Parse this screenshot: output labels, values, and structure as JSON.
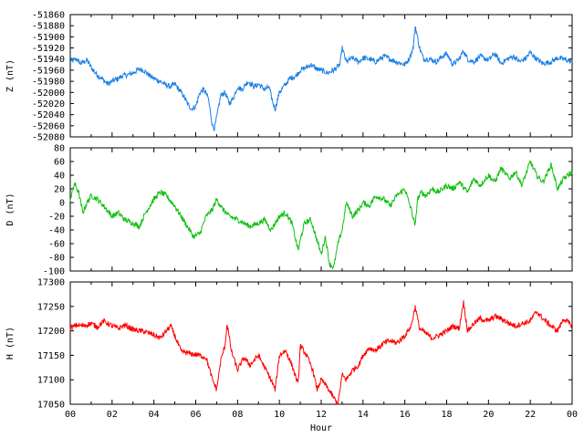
{
  "chart_data": [
    {
      "type": "line",
      "ylabel": "Z (nT)",
      "ylim": [
        -52080,
        -51860
      ],
      "yticks": [
        -51860,
        -51880,
        -51900,
        -51920,
        -51940,
        -51960,
        -51980,
        -52000,
        -52020,
        -52040,
        -52060,
        -52080
      ],
      "xlim": [
        0,
        24
      ],
      "grid": false,
      "series": [
        {
          "color": "#1a7fe6",
          "x": [
            0,
            0.3,
            0.5,
            0.8,
            1.0,
            1.2,
            1.5,
            1.8,
            2.0,
            2.3,
            2.5,
            2.8,
            3.0,
            3.3,
            3.5,
            3.8,
            4.0,
            4.3,
            4.5,
            4.8,
            5.0,
            5.2,
            5.4,
            5.6,
            5.8,
            6.0,
            6.2,
            6.4,
            6.6,
            6.8,
            6.9,
            7.0,
            7.2,
            7.4,
            7.6,
            7.8,
            8.0,
            8.2,
            8.5,
            8.8,
            9.0,
            9.3,
            9.5,
            9.7,
            9.8,
            10.0,
            10.3,
            10.5,
            10.8,
            11.0,
            11.3,
            11.5,
            11.8,
            12.0,
            12.3,
            12.6,
            12.9,
            13.0,
            13.2,
            13.5,
            13.8,
            14.0,
            14.3,
            14.6,
            15.0,
            15.3,
            15.6,
            16.0,
            16.2,
            16.4,
            16.5,
            16.7,
            16.9,
            17.2,
            17.5,
            17.8,
            18.0,
            18.3,
            18.6,
            18.8,
            19.0,
            19.3,
            19.6,
            20.0,
            20.3,
            20.6,
            20.9,
            21.2,
            21.5,
            21.8,
            22.0,
            22.3,
            22.6,
            23.0,
            23.3,
            23.6,
            24.0
          ],
          "values": [
            -51945,
            -51940,
            -51948,
            -51942,
            -51955,
            -51965,
            -51975,
            -51985,
            -51980,
            -51975,
            -51970,
            -51968,
            -51965,
            -51958,
            -51960,
            -51970,
            -51975,
            -51980,
            -51985,
            -51990,
            -51985,
            -51995,
            -52005,
            -52020,
            -52030,
            -52025,
            -52000,
            -51995,
            -52010,
            -52060,
            -52065,
            -52045,
            -52005,
            -52000,
            -52020,
            -52010,
            -51990,
            -51995,
            -51980,
            -51990,
            -51985,
            -51995,
            -51990,
            -52020,
            -52030,
            -52000,
            -51985,
            -51975,
            -51970,
            -51960,
            -51955,
            -51950,
            -51958,
            -51960,
            -51965,
            -51960,
            -51950,
            -51920,
            -51945,
            -51938,
            -51945,
            -51938,
            -51940,
            -51945,
            -51935,
            -51940,
            -51945,
            -51950,
            -51940,
            -51920,
            -51880,
            -51920,
            -51940,
            -51940,
            -51945,
            -51935,
            -51930,
            -51950,
            -51940,
            -51925,
            -51940,
            -51945,
            -51935,
            -51942,
            -51930,
            -51948,
            -51940,
            -51935,
            -51945,
            -51938,
            -51928,
            -51940,
            -51948,
            -51945,
            -51938,
            -51940,
            -51945
          ]
        }
      ]
    },
    {
      "type": "line",
      "ylabel": "D (nT)",
      "ylim": [
        -100,
        80
      ],
      "yticks": [
        80,
        60,
        40,
        20,
        0,
        -20,
        -40,
        -60,
        -80,
        -100
      ],
      "xlim": [
        0,
        24
      ],
      "grid": false,
      "series": [
        {
          "color": "#10c010",
          "x": [
            0,
            0.2,
            0.4,
            0.6,
            0.8,
            1.0,
            1.3,
            1.6,
            2.0,
            2.3,
            2.6,
            3.0,
            3.3,
            3.6,
            4.0,
            4.3,
            4.6,
            5.0,
            5.3,
            5.6,
            5.9,
            6.2,
            6.5,
            6.8,
            7.0,
            7.3,
            7.6,
            8.0,
            8.3,
            8.6,
            9.0,
            9.3,
            9.6,
            10.0,
            10.3,
            10.6,
            10.9,
            11.0,
            11.2,
            11.5,
            11.8,
            12.0,
            12.2,
            12.4,
            12.6,
            12.8,
            13.0,
            13.2,
            13.5,
            13.8,
            14.0,
            14.3,
            14.6,
            15.0,
            15.3,
            15.6,
            16.0,
            16.3,
            16.5,
            16.6,
            16.8,
            17.0,
            17.3,
            17.6,
            18.0,
            18.3,
            18.6,
            19.0,
            19.3,
            19.6,
            20.0,
            20.3,
            20.6,
            21.0,
            21.3,
            21.6,
            22.0,
            22.3,
            22.6,
            23.0,
            23.3,
            23.6,
            24.0
          ],
          "values": [
            5,
            28,
            15,
            -15,
            0,
            10,
            5,
            -5,
            -20,
            -15,
            -25,
            -30,
            -35,
            -15,
            5,
            15,
            10,
            -5,
            -20,
            -35,
            -50,
            -45,
            -20,
            -10,
            5,
            -10,
            -20,
            -25,
            -30,
            -35,
            -30,
            -25,
            -40,
            -20,
            -15,
            -30,
            -70,
            -55,
            -30,
            -25,
            -55,
            -75,
            -50,
            -90,
            -95,
            -60,
            -40,
            0,
            -20,
            -10,
            0,
            -5,
            10,
            5,
            -5,
            10,
            20,
            -10,
            -35,
            5,
            15,
            10,
            20,
            15,
            25,
            20,
            30,
            15,
            35,
            25,
            40,
            30,
            50,
            35,
            45,
            25,
            60,
            40,
            30,
            55,
            20,
            35,
            45
          ]
        }
      ]
    },
    {
      "type": "line",
      "ylabel": "H (nT)",
      "ylim": [
        17050,
        17300
      ],
      "yticks": [
        17300,
        17250,
        17200,
        17150,
        17100,
        17050
      ],
      "xlim": [
        0,
        24
      ],
      "xticks": [
        "00",
        "02",
        "04",
        "06",
        "08",
        "10",
        "12",
        "14",
        "16",
        "18",
        "20",
        "22",
        "00"
      ],
      "xlabel": "Hour",
      "grid": false,
      "series": [
        {
          "color": "#ff0000",
          "x": [
            0,
            0.3,
            0.6,
            1.0,
            1.3,
            1.6,
            2.0,
            2.3,
            2.6,
            3.0,
            3.3,
            3.6,
            4.0,
            4.3,
            4.6,
            4.8,
            5.0,
            5.3,
            5.6,
            5.9,
            6.2,
            6.5,
            6.8,
            7.0,
            7.2,
            7.4,
            7.5,
            7.7,
            8.0,
            8.3,
            8.6,
            9.0,
            9.3,
            9.6,
            9.8,
            10.0,
            10.3,
            10.6,
            10.9,
            11.0,
            11.3,
            11.6,
            11.8,
            12.0,
            12.2,
            12.5,
            12.8,
            13.0,
            13.2,
            13.5,
            13.8,
            14.0,
            14.3,
            14.6,
            15.0,
            15.3,
            15.6,
            16.0,
            16.3,
            16.5,
            16.7,
            17.0,
            17.3,
            17.6,
            18.0,
            18.3,
            18.6,
            18.8,
            19.0,
            19.3,
            19.6,
            20.0,
            20.3,
            20.6,
            21.0,
            21.3,
            21.6,
            22.0,
            22.3,
            22.6,
            23.0,
            23.3,
            23.6,
            24.0
          ],
          "values": [
            17205,
            17212,
            17210,
            17215,
            17208,
            17220,
            17210,
            17205,
            17212,
            17203,
            17200,
            17198,
            17192,
            17185,
            17200,
            17210,
            17190,
            17158,
            17155,
            17152,
            17150,
            17145,
            17100,
            17080,
            17140,
            17170,
            17215,
            17160,
            17120,
            17145,
            17130,
            17150,
            17125,
            17100,
            17080,
            17150,
            17160,
            17130,
            17090,
            17170,
            17150,
            17120,
            17080,
            17100,
            17090,
            17070,
            17050,
            17110,
            17100,
            17120,
            17130,
            17150,
            17165,
            17160,
            17175,
            17180,
            17175,
            17190,
            17210,
            17250,
            17205,
            17195,
            17185,
            17190,
            17200,
            17210,
            17205,
            17260,
            17200,
            17215,
            17225,
            17220,
            17230,
            17225,
            17215,
            17210,
            17215,
            17220,
            17240,
            17225,
            17210,
            17200,
            17225,
            17210
          ]
        }
      ]
    }
  ]
}
